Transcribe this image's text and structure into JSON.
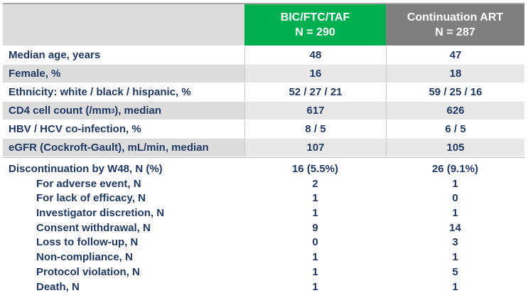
{
  "header": {
    "col2_title": "BIC/FTC/TAF",
    "col2_n": "N = 290",
    "col3_title": "Continuation ART",
    "col3_n": "N = 287"
  },
  "rows": [
    {
      "label": "Median age, years",
      "v1": "48",
      "v2": "47"
    },
    {
      "label": "Female, %",
      "v1": "16",
      "v2": "18"
    },
    {
      "label": "Ethnicity: white / black / hispanic, %",
      "v1": "52 / 27 / 21",
      "v2": "59 / 25 / 16"
    },
    {
      "label_pre": "CD4 cell count (/mm",
      "label_sup": "3",
      "label_post": "), median",
      "v1": "617",
      "v2": "626"
    },
    {
      "label": "HBV / HCV co-infection, %",
      "v1": "8 / 5",
      "v2": "6 / 5"
    },
    {
      "label": "eGFR (Cockroft-Gault), mL/min, median",
      "v1": "107",
      "v2": "105"
    }
  ],
  "discontinuation": {
    "label": "Discontinuation by W48, N (%)",
    "v1": "16 (5.5%)",
    "v2": "26 (9.1%)",
    "items": [
      {
        "label": "For adverse event, N",
        "v1": "2",
        "v2": "1"
      },
      {
        "label": "For lack of efficacy, N",
        "v1": "1",
        "v2": "0"
      },
      {
        "label": "Investigator discretion, N",
        "v1": "1",
        "v2": "1"
      },
      {
        "label": "Consent withdrawal, N",
        "v1": "9",
        "v2": "14"
      },
      {
        "label": "Loss to follow-up, N",
        "v1": "0",
        "v2": "3"
      },
      {
        "label": "Non-compliance, N",
        "v1": "1",
        "v2": "1"
      },
      {
        "label": "Protocol violation, N",
        "v1": "1",
        "v2": "5"
      },
      {
        "label": "Death, N",
        "v1": "1",
        "v2": "1"
      }
    ]
  },
  "colors": {
    "arm1": "#00b050",
    "arm2": "#7f7f7f",
    "text": "#1f3864"
  }
}
